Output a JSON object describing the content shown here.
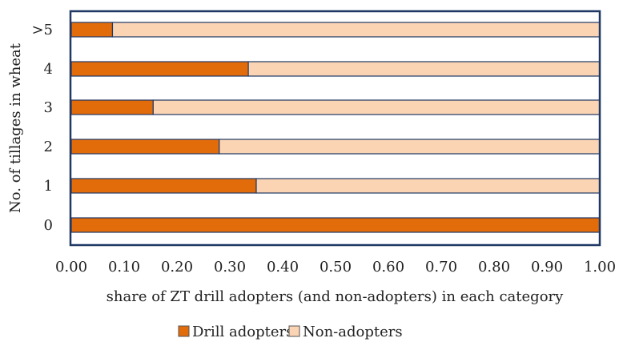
{
  "chart_data": {
    "type": "bar",
    "orientation": "horizontal",
    "stacked": true,
    "categories": [
      "0",
      "1",
      "2",
      "3",
      "4",
      ">5"
    ],
    "series": [
      {
        "name": "Drill adopters",
        "color": "#e36c0a",
        "values": [
          1.0,
          0.35,
          0.28,
          0.155,
          0.335,
          0.078
        ]
      },
      {
        "name": "Non-adopters",
        "color": "#fbd4b4",
        "values": [
          0.0,
          0.65,
          0.72,
          0.845,
          0.665,
          0.922
        ]
      }
    ],
    "xlim": [
      0,
      1
    ],
    "xticks": [
      "0.00",
      "0.10",
      "0.20",
      "0.30",
      "0.40",
      "0.50",
      "0.60",
      "0.70",
      "0.80",
      "0.90",
      "1.00"
    ],
    "xlabel": "share of ZT drill adopters (and non-adopters) in each category",
    "ylabel": "No. of tillages in wheat",
    "legend_position": "bottom",
    "grid": false,
    "frame_color": "#1f3864",
    "bar_edge_color": "#1f3864"
  }
}
